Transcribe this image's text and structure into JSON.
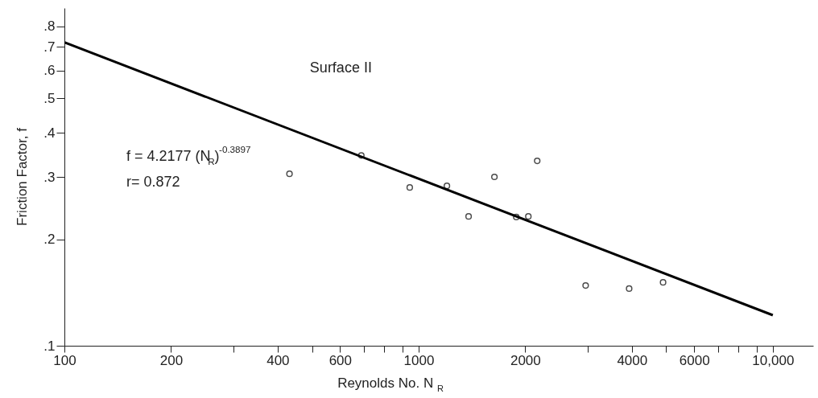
{
  "chart_data": {
    "type": "scatter",
    "xlabel": "Reynolds No. N$_{R}$",
    "ylabel": "Friction Factor, f",
    "annotations": [
      "Surface II",
      "f = 4.2177 (N$_{R}$)$^{-0.3897}$",
      "r= 0.872"
    ],
    "log": "xy",
    "grid": false,
    "xlim": [
      100,
      13000
    ],
    "ylim": [
      0.1,
      0.9
    ],
    "xticks": [
      100,
      200,
      {
        "value": 300,
        "label": null
      },
      400,
      {
        "value": 500,
        "label": null
      },
      600,
      {
        "value": 700,
        "label": null
      },
      {
        "value": 800,
        "label": null
      },
      {
        "value": 900,
        "label": null
      },
      1000,
      2000,
      {
        "value": 3000,
        "label": null
      },
      4000,
      {
        "value": 5000,
        "label": null
      },
      6000,
      {
        "value": 7000,
        "label": null
      },
      {
        "value": 8000,
        "label": null
      },
      {
        "value": 9000,
        "label": null
      },
      {
        "value": 10000,
        "label": "10,000"
      }
    ],
    "yticks": [
      {
        "value": 0.1,
        "label": ".1"
      },
      {
        "value": 0.2,
        "label": ".2"
      },
      {
        "value": 0.3,
        "label": ".3"
      },
      {
        "value": 0.4,
        "label": ".4"
      },
      {
        "value": 0.5,
        "label": ".5"
      },
      {
        "value": 0.6,
        "label": ".6"
      },
      {
        "value": 0.7,
        "label": ".7"
      },
      {
        "value": 0.8,
        "label": ".8"
      }
    ],
    "series": [
      {
        "color": "#000000",
        "marker": "circle",
        "x": [
          432,
          689,
          944,
          1202,
          1384,
          1637,
          1887,
          2041,
          2162,
          2962,
          3930,
          4900
        ],
        "values": [
          0.306,
          0.345,
          0.28,
          0.283,
          0.232,
          0.3,
          0.231,
          0.232,
          0.333,
          0.148,
          0.145,
          0.151
        ]
      },
      {
        "type": "line",
        "color": "#000000",
        "line_style": "solid",
        "marker": "none",
        "x": [
          100,
          10000
        ],
        "values": [
          0.72,
          0.122
        ]
      }
    ]
  }
}
